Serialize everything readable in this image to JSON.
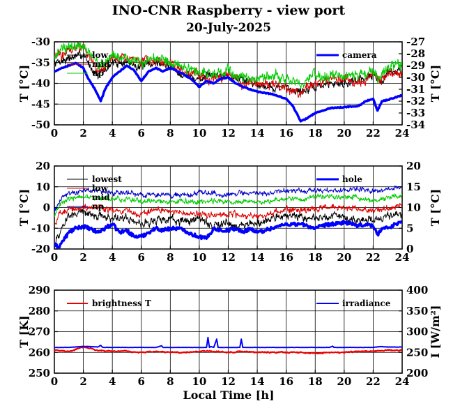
{
  "title": "INO-CNR Raspberry - view port",
  "subtitle": "20-July-2025",
  "xlabel": "Local Time [h]",
  "chart_data": [
    {
      "type": "line",
      "panel": "camera",
      "xlim": [
        0,
        24
      ],
      "xticks": [
        "0",
        "2",
        "4",
        "6",
        "8",
        "10",
        "12",
        "14",
        "16",
        "18",
        "20",
        "22",
        "24"
      ],
      "ylim": [
        -50,
        -30
      ],
      "yticks": [
        "-30",
        "-35",
        "-40",
        "-45",
        "-50"
      ],
      "ylabel": "T [°C]",
      "y2lim": [
        -34,
        -27
      ],
      "y2ticks": [
        "-27",
        "-28",
        "-29",
        "-30",
        "-31",
        "-32",
        "-33",
        "-34"
      ],
      "y2label": "T [°C]",
      "grid": true,
      "legend_left": [
        "low",
        "mid",
        "up"
      ],
      "legend_right": [
        "camera"
      ],
      "series": [
        {
          "name": "low",
          "color": "#000000",
          "axis": "left",
          "width": 1,
          "noise": 1.0,
          "x": [
            0,
            1,
            2,
            2.5,
            3,
            3.5,
            4,
            5,
            6,
            7,
            8,
            9,
            10,
            11,
            12,
            13,
            14,
            15,
            16,
            17,
            18,
            19,
            20,
            21,
            22,
            22.5,
            23,
            24
          ],
          "y": [
            -35,
            -34,
            -33,
            -36,
            -38,
            -37,
            -35,
            -35,
            -36,
            -35,
            -36,
            -38,
            -39,
            -38,
            -38,
            -39,
            -40,
            -41,
            -41,
            -42,
            -41,
            -40,
            -40,
            -39,
            -38,
            -40,
            -37,
            -37
          ]
        },
        {
          "name": "mid",
          "color": "#dd0000",
          "axis": "left",
          "width": 1,
          "noise": 1.2,
          "x": [
            0,
            1,
            2,
            2.5,
            3,
            3.5,
            4,
            5,
            6,
            7,
            8,
            9,
            10,
            11,
            12,
            13,
            14,
            15,
            16,
            17,
            18,
            19,
            20,
            21,
            22,
            22.5,
            23,
            24
          ],
          "y": [
            -34,
            -32,
            -31,
            -34,
            -37,
            -36,
            -34,
            -34,
            -35,
            -35,
            -35,
            -37,
            -38,
            -39,
            -38,
            -40,
            -40,
            -40,
            -41,
            -42,
            -40,
            -39,
            -39,
            -40,
            -38,
            -40,
            -37,
            -38
          ]
        },
        {
          "name": "up",
          "color": "#00cc00",
          "axis": "left",
          "width": 1,
          "noise": 1.3,
          "x": [
            0,
            1,
            2,
            2.5,
            3,
            3.5,
            4,
            5,
            6,
            7,
            8,
            9,
            10,
            11,
            12,
            13,
            14,
            15,
            16,
            17,
            18,
            19,
            20,
            21,
            22,
            22.5,
            23,
            24
          ],
          "y": [
            -33,
            -31,
            -31,
            -33,
            -36,
            -35,
            -33,
            -34,
            -35,
            -34,
            -35,
            -36,
            -37,
            -38,
            -37,
            -39,
            -39,
            -38,
            -39,
            -40,
            -38,
            -38,
            -38,
            -38,
            -37,
            -39,
            -36,
            -36
          ]
        },
        {
          "name": "camera",
          "color": "#0000ff",
          "axis": "right",
          "width": 3.5,
          "noise": 0.08,
          "x": [
            0,
            0.5,
            1,
            1.5,
            2,
            2.3,
            2.8,
            3.2,
            3.5,
            4,
            4.5,
            5,
            5.5,
            6,
            6.5,
            7,
            7.5,
            8,
            8.5,
            9,
            9.5,
            10,
            10.5,
            11,
            11.5,
            12,
            12.5,
            13,
            13.5,
            14,
            15,
            16,
            16.5,
            17,
            17.5,
            18,
            19,
            20,
            21,
            21.5,
            22,
            22.3,
            22.6,
            23,
            23.5,
            24
          ],
          "y": [
            -29.5,
            -29.2,
            -29,
            -28.8,
            -29.2,
            -30,
            -31,
            -32,
            -31,
            -30,
            -29.5,
            -29,
            -29.4,
            -30.3,
            -29.5,
            -29.2,
            -29.5,
            -29.2,
            -29.5,
            -29.8,
            -30.2,
            -30.8,
            -30.3,
            -30.5,
            -30.1,
            -30,
            -30.5,
            -30.8,
            -31,
            -31.2,
            -31.4,
            -31.8,
            -32.5,
            -33.7,
            -33.4,
            -33,
            -32.6,
            -32.5,
            -32.4,
            -32,
            -31.8,
            -32.8,
            -32,
            -31.9,
            -31.7,
            -31.5
          ]
        }
      ]
    },
    {
      "type": "line",
      "panel": "hole",
      "xlim": [
        0,
        24
      ],
      "xticks": [
        "0",
        "2",
        "4",
        "6",
        "8",
        "10",
        "12",
        "14",
        "16",
        "18",
        "20",
        "22",
        "24"
      ],
      "ylim": [
        -20,
        20
      ],
      "yticks": [
        "20",
        "10",
        "0",
        "-10",
        "-20"
      ],
      "ylabel": "T [°C]",
      "y2lim": [
        0,
        20
      ],
      "y2ticks": [
        "20",
        "15",
        "10",
        "5",
        "0"
      ],
      "y2label": "T [°C]",
      "grid": true,
      "legend_left": [
        "lowest",
        "low",
        "mid",
        "up"
      ],
      "legend_right": [
        "hole"
      ],
      "series": [
        {
          "name": "lowest",
          "color": "#000000",
          "axis": "left",
          "width": 1,
          "noise": 2.0,
          "x": [
            0,
            0.5,
            1,
            2,
            3,
            4,
            5,
            6,
            7,
            8,
            9,
            10,
            11,
            12,
            13,
            14,
            15,
            16,
            17,
            18,
            19,
            20,
            21,
            22,
            23,
            24
          ],
          "y": [
            -18,
            -10,
            -4,
            -2,
            -4,
            -5,
            -5,
            -8,
            -6,
            -6,
            -7,
            -5,
            -9,
            -7,
            -9,
            -8,
            -6,
            -4,
            -4,
            -5,
            -4,
            -4,
            -7,
            -6,
            -5,
            -4
          ]
        },
        {
          "name": "low",
          "color": "#dd0000",
          "axis": "left",
          "width": 1,
          "noise": 1.5,
          "x": [
            0,
            0.5,
            1,
            2,
            3,
            4,
            5,
            6,
            7,
            8,
            9,
            10,
            11,
            12,
            13,
            14,
            15,
            16,
            17,
            18,
            19,
            20,
            21,
            22,
            23,
            24
          ],
          "y": [
            -8,
            -2,
            -1,
            0,
            0,
            -1,
            -2,
            -3,
            -1,
            -2,
            -3,
            -3,
            -4,
            -3,
            -4,
            -4,
            -3,
            -1,
            -1,
            0,
            0,
            0,
            0,
            -2,
            0,
            1
          ]
        },
        {
          "name": "mid",
          "color": "#00cc00",
          "axis": "left",
          "width": 1,
          "noise": 1.2,
          "x": [
            0,
            0.5,
            1,
            2,
            3,
            4,
            5,
            6,
            7,
            8,
            9,
            10,
            11,
            12,
            13,
            14,
            15,
            16,
            17,
            18,
            19,
            20,
            21,
            22,
            23,
            24
          ],
          "y": [
            -4,
            2,
            4,
            5,
            5,
            4,
            4,
            3,
            3,
            3,
            3,
            3,
            3,
            3,
            3,
            3,
            3,
            4,
            4,
            5,
            5,
            5,
            5,
            3,
            5,
            6
          ]
        },
        {
          "name": "up",
          "color": "#0000cc",
          "axis": "left",
          "width": 1,
          "noise": 1.2,
          "x": [
            0,
            0.5,
            1,
            2,
            3,
            4,
            5,
            6,
            7,
            8,
            9,
            10,
            11,
            12,
            13,
            14,
            15,
            16,
            17,
            18,
            19,
            20,
            21,
            22,
            23,
            24
          ],
          "y": [
            -2,
            5,
            7,
            8,
            8,
            7,
            7,
            6,
            6,
            6,
            6,
            7,
            7,
            6,
            7,
            7,
            7,
            8,
            8,
            8,
            8,
            8,
            9,
            8,
            9,
            10
          ]
        },
        {
          "name": "hole",
          "color": "#0000ff",
          "axis": "right",
          "width": 3.5,
          "noise": 0.9,
          "x": [
            0,
            0.3,
            0.6,
            1,
            1.5,
            2,
            3,
            3.5,
            4,
            4.5,
            5,
            5.5,
            6,
            6.5,
            7,
            7.5,
            8,
            8.5,
            9,
            9.5,
            10,
            10.5,
            11,
            11.5,
            12,
            12.5,
            13,
            13.5,
            14,
            14.5,
            15,
            15.5,
            16,
            16.5,
            17,
            17.5,
            18,
            18.5,
            19,
            19.5,
            20,
            20.5,
            21,
            21.5,
            22,
            22.3,
            22.6,
            23,
            23.5,
            24
          ],
          "y": [
            1,
            0.5,
            2,
            4,
            5,
            5.5,
            4,
            5,
            6,
            4,
            4.5,
            3,
            3,
            4,
            5,
            4.5,
            5,
            5,
            4.5,
            3.5,
            3,
            2.5,
            5,
            4.5,
            4.5,
            5,
            4,
            5,
            4,
            4.5,
            5,
            5.5,
            6,
            6,
            6,
            5.5,
            5,
            5.5,
            6,
            6,
            6.5,
            6,
            5.5,
            6,
            5.5,
            3.5,
            5,
            5,
            6,
            6.5
          ]
        }
      ]
    },
    {
      "type": "line",
      "panel": "sky",
      "xlim": [
        0,
        24
      ],
      "xticks": [
        "0",
        "2",
        "4",
        "6",
        "8",
        "10",
        "12",
        "14",
        "16",
        "18",
        "20",
        "22",
        "24"
      ],
      "ylim": [
        250,
        290
      ],
      "yticks": [
        "290",
        "280",
        "270",
        "260",
        "250"
      ],
      "ylabel": "T [K]",
      "y2lim": [
        200,
        400
      ],
      "y2ticks": [
        "400",
        "350",
        "300",
        "250",
        "200"
      ],
      "y2label": "I [W/m²]",
      "grid": true,
      "legend_left": [
        "brightness T"
      ],
      "legend_right": [
        "irradiance"
      ],
      "series": [
        {
          "name": "brightness T",
          "color": "#ee0000",
          "axis": "left",
          "width": 2,
          "noise": 0.3,
          "x": [
            0,
            1,
            2,
            2.5,
            3,
            4,
            5,
            6,
            7,
            8,
            9,
            10,
            11,
            12,
            13,
            14,
            15,
            16,
            17,
            18,
            19,
            20,
            21,
            22,
            23,
            24
          ],
          "y": [
            261,
            260.5,
            262.5,
            262,
            261,
            260.5,
            260.5,
            260,
            260.5,
            260,
            260,
            260.5,
            260.5,
            260,
            260.5,
            260,
            260,
            260,
            260,
            259.5,
            260,
            260,
            260.5,
            260.5,
            261,
            261
          ]
        },
        {
          "name": "irradiance",
          "color": "#0000ff",
          "axis": "right",
          "width": 2,
          "noise": 0.6,
          "x": [
            0,
            1,
            2,
            2.5,
            3,
            3.2,
            3.3,
            3.4,
            4,
            5,
            6,
            7,
            7.4,
            7.5,
            7.6,
            8,
            9,
            10,
            10.5,
            10.6,
            10.7,
            10.8,
            11,
            11.2,
            11.3,
            11.4,
            12,
            12.8,
            12.9,
            13,
            14,
            15,
            16,
            17,
            18,
            19,
            19.2,
            19.3,
            20,
            21,
            22,
            22.5,
            23,
            24
          ],
          "y": [
            262,
            262,
            264.5,
            264,
            263,
            267,
            263,
            262,
            262,
            262,
            262,
            262,
            266,
            262,
            262,
            262,
            262,
            262,
            262,
            286,
            262,
            264,
            262,
            282,
            262,
            262,
            262,
            262,
            282,
            262,
            262,
            262,
            262,
            262,
            262,
            262,
            265,
            262,
            262,
            262,
            262,
            264,
            263,
            263
          ]
        }
      ]
    }
  ]
}
